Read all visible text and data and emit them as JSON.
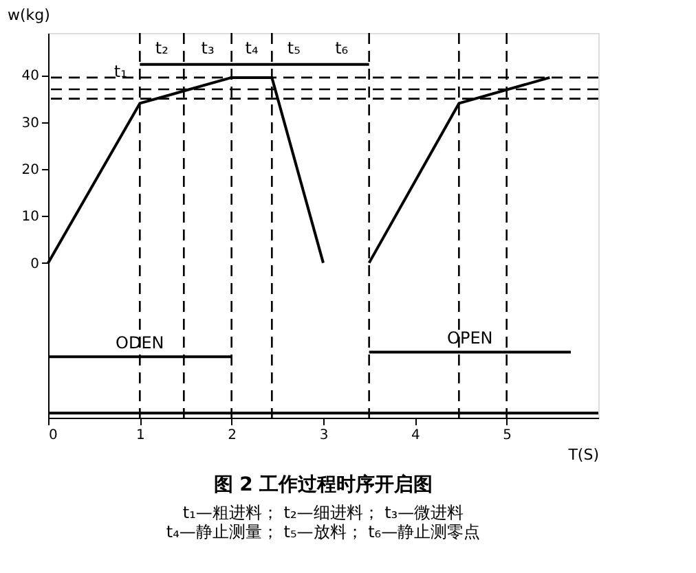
{
  "chart_data": {
    "type": "line",
    "title": "图 2  工作过程时序开启图",
    "xlabel": "T(S)",
    "ylabel": "w(kg)",
    "xlim": [
      0,
      6
    ],
    "xticks": [
      0,
      1,
      2,
      3,
      4,
      5
    ],
    "ylim": [
      -33,
      49
    ],
    "yticks": [
      0,
      10,
      20,
      30,
      40
    ],
    "grid": false,
    "legend": false,
    "marker": "none",
    "line_style": "solid",
    "series": [
      {
        "x": [
          0,
          1,
          2,
          2.44,
          3.0
        ],
        "values": [
          0,
          34,
          39.5,
          39.5,
          0
        ],
        "color": "#000000"
      },
      {
        "x": [
          3.5,
          4.48,
          5.47
        ],
        "values": [
          0,
          34,
          39.5
        ],
        "color": "#000000"
      },
      {
        "name": "ODEN",
        "x": [
          0,
          2
        ],
        "values": [
          -20,
          -20
        ],
        "color": "#000000"
      },
      {
        "name": "OPEN",
        "x": [
          3.5,
          5.7
        ],
        "values": [
          -19,
          -19
        ],
        "color": "#000000"
      },
      {
        "x": [
          1,
          3.5
        ],
        "values": [
          42.3,
          42.3
        ],
        "color": "#000000"
      },
      {
        "x": [
          0,
          6
        ],
        "values": [
          -32,
          -32
        ],
        "color": "#000000"
      }
    ],
    "ref_lines": [
      {
        "axis": "y",
        "value": 39.5,
        "line_style": "dashed"
      },
      {
        "axis": "y",
        "value": 37,
        "line_style": "dashed"
      },
      {
        "axis": "y",
        "value": 35,
        "line_style": "dashed"
      },
      {
        "axis": "x",
        "value": 1,
        "line_style": "dashed"
      },
      {
        "axis": "x",
        "value": 1.48,
        "line_style": "dashed"
      },
      {
        "axis": "x",
        "value": 2,
        "line_style": "dashed"
      },
      {
        "axis": "x",
        "value": 2.44,
        "line_style": "dashed"
      },
      {
        "axis": "x",
        "value": 3.5,
        "line_style": "dashed"
      },
      {
        "axis": "x",
        "value": 4.48,
        "line_style": "dashed"
      },
      {
        "axis": "x",
        "value": 5,
        "line_style": "dashed"
      }
    ],
    "annotations": [
      {
        "text": "t₁",
        "x": 1,
        "y": 42.3
      },
      {
        "text": "t₂",
        "x": 1.24,
        "y": 42.3
      },
      {
        "text": "t₃",
        "x": 1.74,
        "y": 42.3
      },
      {
        "text": "t₄",
        "x": 2.22,
        "y": 42.3
      },
      {
        "text": "t₅",
        "x": 2.68,
        "y": 42.3
      },
      {
        "text": "t₆",
        "x": 3.2,
        "y": 42.3
      },
      "t₁—粗进料； t₂—细进料； t₃—微进料",
      "t₄—静止测量； t₅—放料； t₆—静止测零点"
    ]
  }
}
